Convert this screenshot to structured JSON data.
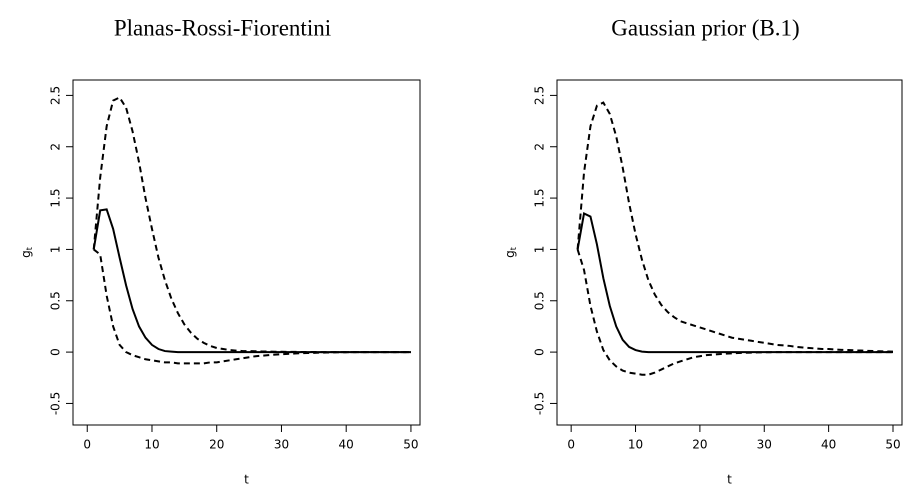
{
  "chart_data": [
    {
      "type": "line",
      "title": "Planas-Rossi-Fiorentini",
      "xlabel": "t",
      "ylabel": "g",
      "ylabel_sub": "t",
      "x": [
        1,
        2,
        3,
        4,
        5,
        6,
        7,
        8,
        9,
        10,
        11,
        12,
        13,
        14,
        15,
        16,
        17,
        18,
        19,
        20,
        21,
        22,
        23,
        24,
        25,
        26,
        27,
        28,
        29,
        30,
        31,
        32,
        33,
        34,
        35,
        36,
        37,
        38,
        39,
        40,
        41,
        42,
        43,
        44,
        45,
        46,
        47,
        48,
        49,
        50
      ],
      "xlim": [
        -2.2,
        51.4
      ],
      "xticks": [
        0,
        10,
        20,
        30,
        40,
        50
      ],
      "ylim": [
        -0.71,
        2.65
      ],
      "yticks": [
        -0.5,
        0.0,
        0.5,
        1.0,
        1.5,
        2.0,
        2.5
      ],
      "series": [
        {
          "color": "#000000",
          "linestyle": "solid",
          "values": [
            1.0,
            1.38,
            1.39,
            1.2,
            0.92,
            0.65,
            0.42,
            0.25,
            0.14,
            0.07,
            0.03,
            0.01,
            0.005,
            0,
            0,
            0,
            0,
            0,
            0,
            0,
            0,
            0,
            0,
            0,
            0,
            0,
            0,
            0,
            0,
            0,
            0,
            0,
            0,
            0,
            0,
            0,
            0,
            0,
            0,
            0,
            0,
            0,
            0,
            0,
            0,
            0,
            0,
            0,
            0,
            0
          ]
        },
        {
          "color": "#000000",
          "linestyle": "dashed",
          "values": [
            1.0,
            1.7,
            2.2,
            2.45,
            2.48,
            2.38,
            2.15,
            1.85,
            1.5,
            1.2,
            0.92,
            0.7,
            0.52,
            0.38,
            0.27,
            0.19,
            0.13,
            0.09,
            0.06,
            0.04,
            0.03,
            0.02,
            0.015,
            0.01,
            0.01,
            0.008,
            0.006,
            0.005,
            0.004,
            0.003,
            0.002,
            0.002,
            0.001,
            0.001,
            0.001,
            0,
            0,
            0,
            0,
            0,
            0,
            0,
            0,
            0,
            0,
            0,
            0,
            0,
            0,
            0
          ]
        },
        {
          "color": "#000000",
          "linestyle": "dashed",
          "values": [
            1.0,
            0.95,
            0.55,
            0.25,
            0.07,
            0.0,
            -0.03,
            -0.05,
            -0.07,
            -0.08,
            -0.09,
            -0.1,
            -0.1,
            -0.11,
            -0.11,
            -0.11,
            -0.11,
            -0.11,
            -0.1,
            -0.1,
            -0.09,
            -0.08,
            -0.07,
            -0.06,
            -0.05,
            -0.04,
            -0.035,
            -0.03,
            -0.025,
            -0.02,
            -0.017,
            -0.014,
            -0.011,
            -0.009,
            -0.007,
            -0.005,
            -0.004,
            -0.003,
            -0.002,
            -0.001,
            0,
            0,
            0,
            0,
            0,
            0,
            0,
            0,
            0,
            0
          ]
        }
      ]
    },
    {
      "type": "line",
      "title": "Gaussian prior (B.1)",
      "xlabel": "t",
      "ylabel": "g",
      "ylabel_sub": "t",
      "x": [
        1,
        2,
        3,
        4,
        5,
        6,
        7,
        8,
        9,
        10,
        11,
        12,
        13,
        14,
        15,
        16,
        17,
        18,
        19,
        20,
        21,
        22,
        23,
        24,
        25,
        26,
        27,
        28,
        29,
        30,
        31,
        32,
        33,
        34,
        35,
        36,
        37,
        38,
        39,
        40,
        41,
        42,
        43,
        44,
        45,
        46,
        47,
        48,
        49,
        50
      ],
      "xlim": [
        -2.2,
        51.4
      ],
      "xticks": [
        0,
        10,
        20,
        30,
        40,
        50
      ],
      "ylim": [
        -0.71,
        2.65
      ],
      "yticks": [
        -0.5,
        0.0,
        0.5,
        1.0,
        1.5,
        2.0,
        2.5
      ],
      "series": [
        {
          "color": "#000000",
          "linestyle": "solid",
          "values": [
            1.0,
            1.35,
            1.32,
            1.05,
            0.72,
            0.45,
            0.25,
            0.12,
            0.05,
            0.02,
            0.005,
            0,
            0,
            0,
            0,
            0,
            0,
            0,
            0,
            0,
            0,
            0,
            0,
            0,
            0,
            0,
            0,
            0,
            0,
            0,
            0,
            0,
            0,
            0,
            0,
            0,
            0,
            0,
            0,
            0,
            0,
            0,
            0,
            0,
            0,
            0,
            0,
            0,
            0,
            0
          ]
        },
        {
          "color": "#000000",
          "linestyle": "dashed",
          "values": [
            1.0,
            1.75,
            2.2,
            2.4,
            2.43,
            2.32,
            2.1,
            1.8,
            1.45,
            1.15,
            0.9,
            0.7,
            0.56,
            0.46,
            0.39,
            0.34,
            0.3,
            0.28,
            0.26,
            0.24,
            0.22,
            0.2,
            0.18,
            0.16,
            0.14,
            0.13,
            0.12,
            0.11,
            0.1,
            0.09,
            0.08,
            0.07,
            0.065,
            0.06,
            0.05,
            0.045,
            0.04,
            0.035,
            0.03,
            0.03,
            0.025,
            0.022,
            0.02,
            0.017,
            0.015,
            0.012,
            0.01,
            0.008,
            0.006,
            0.005
          ]
        },
        {
          "color": "#000000",
          "linestyle": "dashed",
          "values": [
            1.0,
            0.8,
            0.45,
            0.2,
            0.02,
            -0.08,
            -0.14,
            -0.18,
            -0.2,
            -0.21,
            -0.22,
            -0.22,
            -0.2,
            -0.17,
            -0.14,
            -0.11,
            -0.09,
            -0.07,
            -0.05,
            -0.04,
            -0.03,
            -0.025,
            -0.02,
            -0.015,
            -0.012,
            -0.009,
            -0.007,
            -0.005,
            -0.003,
            -0.002,
            -0.001,
            0,
            0,
            0,
            0,
            0,
            0,
            0,
            0,
            0,
            0,
            0,
            0,
            0,
            0,
            0,
            0,
            0,
            0,
            0
          ]
        }
      ]
    }
  ]
}
